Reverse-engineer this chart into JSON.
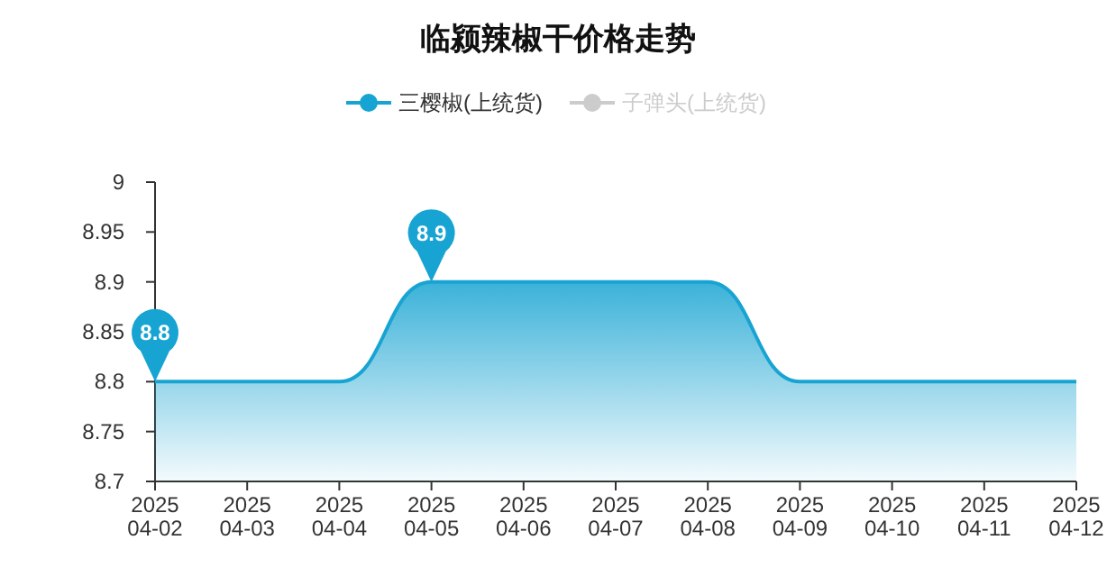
{
  "chart_data": {
    "type": "area",
    "title": "临颍辣椒干价格走势",
    "categories": [
      "2025\n04-02",
      "2025\n04-03",
      "2025\n04-04",
      "2025\n04-05",
      "2025\n04-06",
      "2025\n04-07",
      "2025\n04-08",
      "2025\n04-09",
      "2025\n04-10",
      "2025\n04-11",
      "2025\n04-12"
    ],
    "series": [
      {
        "name": "三樱椒(上统货)",
        "color": "#18a4d2",
        "values": [
          8.8,
          8.8,
          8.8,
          8.9,
          8.9,
          8.9,
          8.9,
          8.8,
          8.8,
          8.8,
          8.8
        ]
      },
      {
        "name": "子弹头(上统货)",
        "color": "#cccccc",
        "values": [
          null,
          null,
          null,
          null,
          null,
          null,
          null,
          null,
          null,
          null,
          null
        ]
      }
    ],
    "ylim": [
      8.7,
      9
    ],
    "yticks": [
      8.7,
      8.75,
      8.8,
      8.85,
      8.9,
      8.95,
      9
    ],
    "grid": false,
    "legend": "top",
    "marker": "none",
    "annotations": [
      {
        "text": "8.8",
        "x": "2025\n04-02",
        "y": 8.8
      },
      {
        "text": "8.9",
        "x": "2025\n04-05",
        "y": 8.9
      }
    ]
  }
}
